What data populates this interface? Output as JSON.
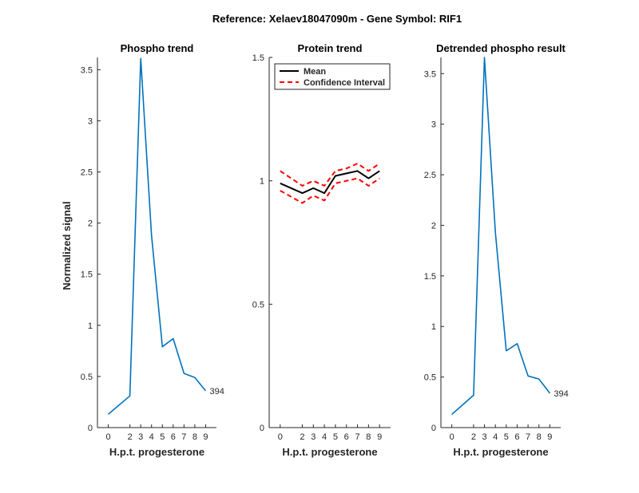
{
  "figure": {
    "suptitle": "Reference:  Xelaev18047090m - Gene Symbol:  RIF1"
  },
  "chart_data": [
    {
      "type": "line",
      "title": "Phospho trend",
      "xlabel": "H.p.t. progesterone",
      "ylabel": "Normalized signal",
      "x": [
        0,
        2,
        3,
        4,
        5,
        6,
        7,
        8,
        9
      ],
      "xticks": [
        "0",
        "2",
        "3",
        "4",
        "5",
        "6",
        "7",
        "8",
        "9"
      ],
      "yticks": [
        "0",
        "0.5",
        "1",
        "1.5",
        "2",
        "2.5",
        "3",
        "3.5"
      ],
      "ylim": [
        0,
        3.62
      ],
      "series": [
        {
          "values": [
            0.13,
            0.31,
            3.61,
            1.88,
            0.79,
            0.87,
            0.53,
            0.49,
            0.36
          ],
          "color": "#0072BD"
        }
      ],
      "annotation": "394"
    },
    {
      "type": "line",
      "title": "Protein trend",
      "xlabel": "H.p.t. progesterone",
      "ylabel": "",
      "x": [
        0,
        2,
        3,
        4,
        5,
        6,
        7,
        8,
        9
      ],
      "xticks": [
        "0",
        "2",
        "3",
        "4",
        "5",
        "6",
        "7",
        "8",
        "9"
      ],
      "yticks": [
        "0",
        "0.5",
        "1",
        "1.5"
      ],
      "ylim": [
        0,
        1.5
      ],
      "legend": {
        "placement": "top-left",
        "mean_label": "Mean",
        "ci_label": "Confidence Interval"
      },
      "series": [
        {
          "name": "Mean",
          "values": [
            0.99,
            0.95,
            0.97,
            0.95,
            1.02,
            1.03,
            1.04,
            1.01,
            1.04
          ],
          "color": "#000000"
        },
        {
          "name": "Confidence Interval",
          "values": [
            1.04,
            0.98,
            1.0,
            0.98,
            1.04,
            1.05,
            1.07,
            1.04,
            1.07
          ],
          "color": "#FF0000"
        },
        {
          "values": [
            0.96,
            0.91,
            0.94,
            0.92,
            0.99,
            1.0,
            1.01,
            0.98,
            1.01
          ],
          "color": "#FF0000"
        }
      ]
    },
    {
      "type": "line",
      "title": "Detrended phospho result",
      "xlabel": "H.p.t. progesterone",
      "ylabel": "",
      "x": [
        0,
        2,
        3,
        4,
        5,
        6,
        7,
        8,
        9
      ],
      "xticks": [
        "0",
        "2",
        "3",
        "4",
        "5",
        "6",
        "7",
        "8",
        "9"
      ],
      "yticks": [
        "0",
        "0.5",
        "1",
        "1.5",
        "2",
        "2.5",
        "3",
        "3.5"
      ],
      "ylim": [
        0,
        3.66
      ],
      "series": [
        {
          "values": [
            0.13,
            0.32,
            3.66,
            1.93,
            0.76,
            0.83,
            0.51,
            0.48,
            0.34
          ],
          "color": "#0072BD"
        }
      ],
      "annotation": "394"
    }
  ]
}
